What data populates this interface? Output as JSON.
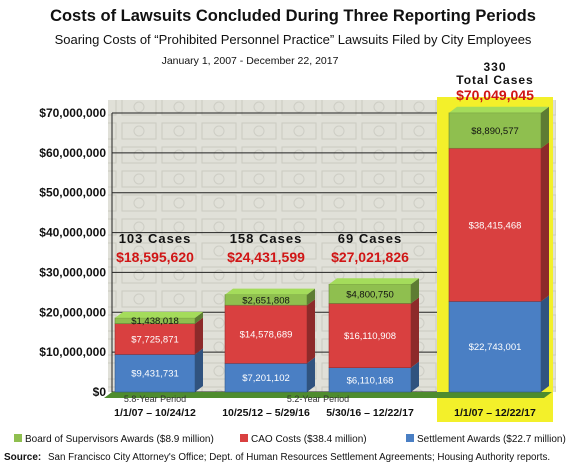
{
  "chart_data": {
    "type": "bar",
    "stacked": true,
    "title": "Costs of Lawsuits Concluded During Three Reporting Periods",
    "subtitle": "Soaring Costs of “Prohibited Personnel Practice” Lawsuits Filed by City Employees",
    "date_range": "January 1, 2007 - December 22, 2017",
    "categories": [
      "1/1/07 – 10/24/12",
      "10/25/12 – 5/29/16",
      "5/30/16 – 12/22/17",
      "1/1/07 – 12/22/17"
    ],
    "period_labels": [
      "5.8-Year Period",
      "5.2-Year Period"
    ],
    "series": [
      {
        "name": "Settlement Awards ($22.7 million)",
        "color": "#4a7fc4",
        "values": [
          9431731,
          7201102,
          6110168,
          22743001
        ],
        "labels": [
          "$9,431,731",
          "$7,201,102",
          "$6,110,168",
          "$22,743,001"
        ]
      },
      {
        "name": "CAO Costs ($38.4 million)",
        "color": "#d94040",
        "values": [
          7725871,
          14578689,
          16110908,
          38415468
        ],
        "labels": [
          "$7,725,871",
          "$14,578,689",
          "$16,110,908",
          "$38,415,468"
        ]
      },
      {
        "name": "Board of Supervisors Awards ($8.9 million)",
        "color": "#8fbf4f",
        "values": [
          1438018,
          2651808,
          4800750,
          8890577
        ],
        "labels": [
          "$1,438,018",
          "$2,651,808",
          "$4,800,750",
          "$8,890,577"
        ]
      }
    ],
    "legend_order": [
      2,
      1,
      0
    ],
    "totals": [
      {
        "cases": "103 Cases",
        "amount": "$18,595,620"
      },
      {
        "cases": "158 Cases",
        "amount": "$24,431,599"
      },
      {
        "cases": "69 Cases",
        "amount": "$27,021,826"
      },
      {
        "cases_line1": "330",
        "cases_line2": "Total Cases",
        "amount": "$70,049,045"
      }
    ],
    "y_ticks": [
      "$0",
      "$10,000,000",
      "$20,000,000",
      "$30,000,000",
      "$40,000,000",
      "$50,000,000",
      "$60,000,000",
      "$70,000,000"
    ],
    "ylim": [
      0,
      70000000
    ],
    "legend_position": "bottom",
    "grid": true,
    "highlight_color": "#f3f02a",
    "source_label": "Source:",
    "source_text": "San Francisco City Attorney's Office; Dept. of Human Resources Settlement Agreements; Housing Authority reports."
  }
}
